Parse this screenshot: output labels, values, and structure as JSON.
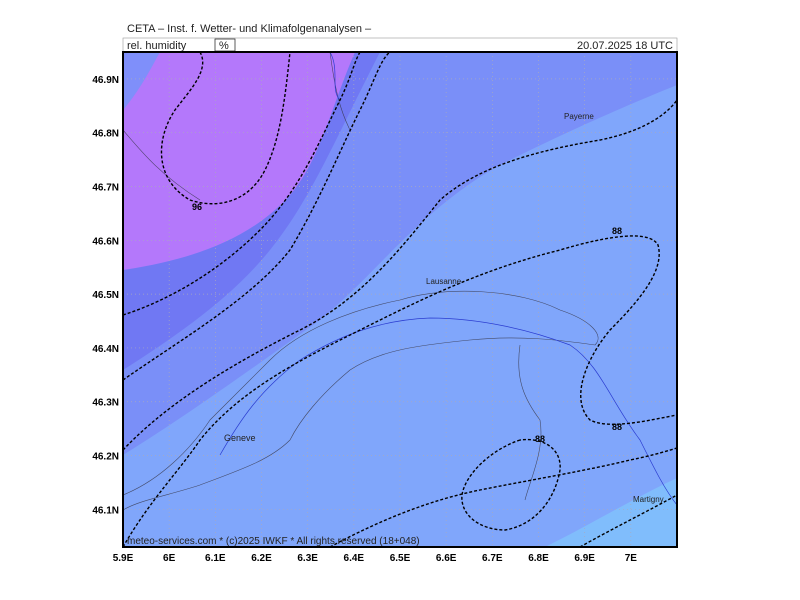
{
  "header": {
    "institute": "CETA – Inst. f. Wetter- und Klimafolgenanalysen –",
    "parameter": "rel. humidity",
    "unit": "%",
    "valid": "20.07.2025 18 UTC"
  },
  "footer": "meteo-services.com * (c)2025 IWKF * All rights reserved (18+048)",
  "axes": {
    "xlim": [
      5.9,
      7.1
    ],
    "ylim": [
      46.03,
      46.95
    ],
    "xticks": [
      {
        "value": 5.9,
        "label": "5.9E"
      },
      {
        "value": 6.0,
        "label": "6E"
      },
      {
        "value": 6.1,
        "label": "6.1E"
      },
      {
        "value": 6.2,
        "label": "6.2E"
      },
      {
        "value": 6.3,
        "label": "6.3E"
      },
      {
        "value": 6.4,
        "label": "6.4E"
      },
      {
        "value": 6.5,
        "label": "6.5E"
      },
      {
        "value": 6.6,
        "label": "6.6E"
      },
      {
        "value": 6.7,
        "label": "6.7E"
      },
      {
        "value": 6.8,
        "label": "6.8E"
      },
      {
        "value": 6.9,
        "label": "6.9E"
      },
      {
        "value": 7.0,
        "label": "7E"
      }
    ],
    "yticks": [
      {
        "value": 46.1,
        "label": "46.1N"
      },
      {
        "value": 46.2,
        "label": "46.2N"
      },
      {
        "value": 46.3,
        "label": "46.3N"
      },
      {
        "value": 46.4,
        "label": "46.4N"
      },
      {
        "value": 46.5,
        "label": "46.5N"
      },
      {
        "value": 46.6,
        "label": "46.6N"
      },
      {
        "value": 46.7,
        "label": "46.7N"
      },
      {
        "value": 46.8,
        "label": "46.8N"
      },
      {
        "value": 46.9,
        "label": "46.9N"
      }
    ]
  },
  "contour_labels": [
    96,
    88,
    88,
    88
  ],
  "places": [
    "Payerne",
    "Lausanne",
    "Geneve",
    "Martigny"
  ]
}
